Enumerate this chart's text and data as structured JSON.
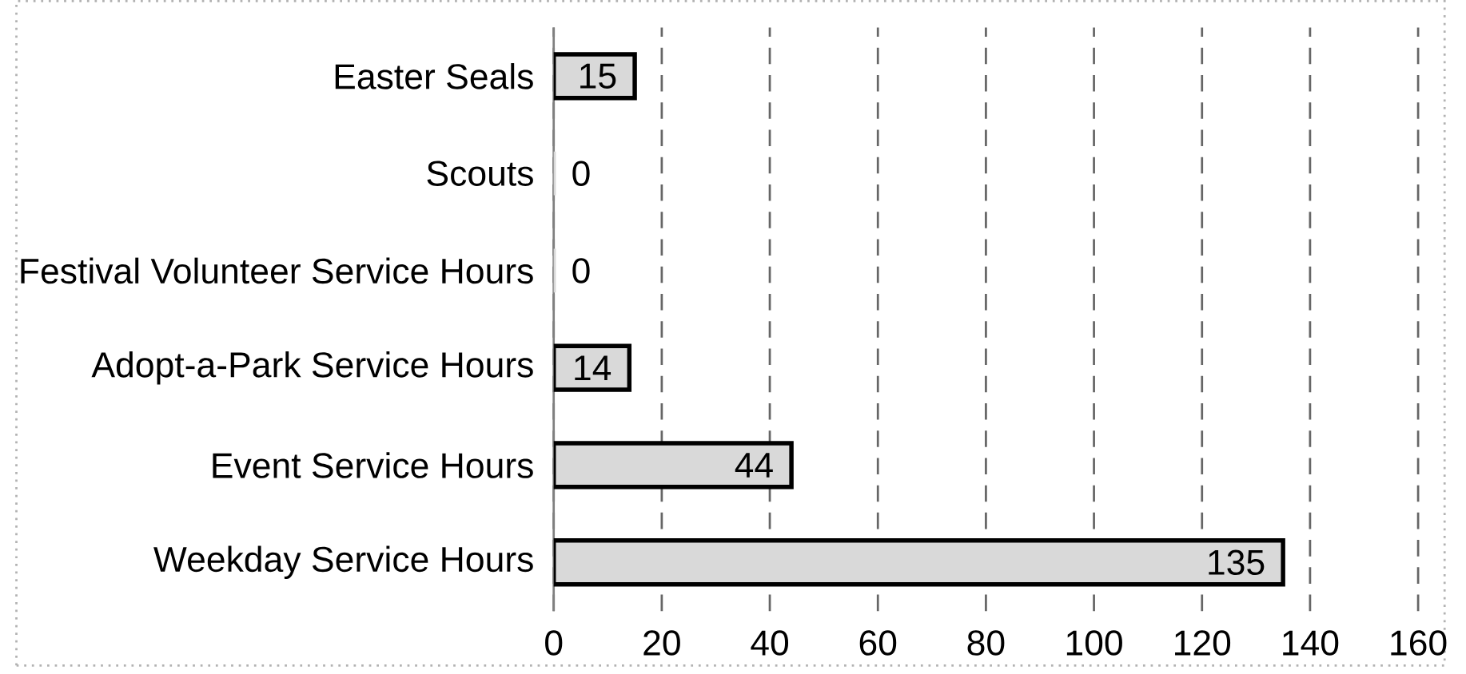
{
  "chart_data": {
    "type": "bar",
    "orientation": "horizontal",
    "categories": [
      "Easter Seals",
      "Scouts",
      "Festival Volunteer Service Hours",
      "Adopt-a-Park Service Hours",
      "Event Service Hours",
      "Weekday Service Hours"
    ],
    "values": [
      15,
      0,
      0,
      14,
      44,
      135
    ],
    "color": "#d9d9d9",
    "xlim": [
      0,
      160
    ],
    "xticks": [
      0,
      20,
      40,
      60,
      80,
      100,
      120,
      140,
      160
    ],
    "grid": "x",
    "data_labels": true
  }
}
